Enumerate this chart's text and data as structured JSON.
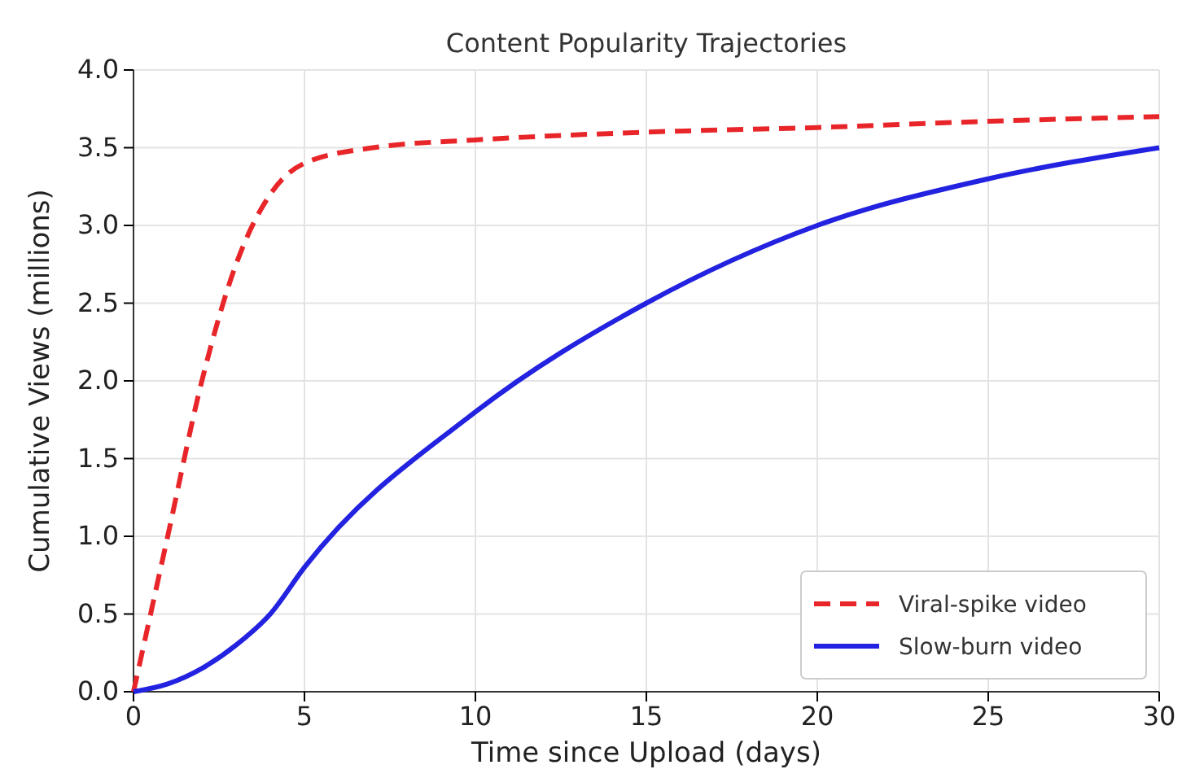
{
  "chart_data": {
    "type": "line",
    "title": "Content Popularity Trajectories",
    "xlabel": "Time since Upload (days)",
    "ylabel": "Cumulative Views (millions)",
    "xlim": [
      0,
      30
    ],
    "xticks": [
      0,
      5,
      10,
      15,
      20,
      25,
      30
    ],
    "ylim": [
      0,
      4
    ],
    "yticks": [
      {
        "value": 0,
        "label": "0.0"
      },
      {
        "value": 0.5,
        "label": "0.5"
      },
      {
        "value": 1,
        "label": "1.0"
      },
      {
        "value": 1.5,
        "label": "1.5"
      },
      {
        "value": 2,
        "label": "2.0"
      },
      {
        "value": 2.5,
        "label": "2.5"
      },
      {
        "value": 3,
        "label": "3.0"
      },
      {
        "value": 3.5,
        "label": "3.5"
      },
      {
        "value": 4,
        "label": "4.0"
      }
    ],
    "grid": true,
    "legend": "bottom right",
    "series": [
      {
        "name": "Viral-spike video",
        "color": "#e8262a",
        "line_style": "dashed",
        "x": [
          0,
          1,
          2,
          3,
          4,
          5,
          7,
          10,
          15,
          20,
          25,
          30
        ],
        "values": [
          0,
          1.0,
          2.0,
          2.75,
          3.2,
          3.4,
          3.5,
          3.55,
          3.6,
          3.63,
          3.67,
          3.7
        ]
      },
      {
        "name": "Slow-burn video",
        "color": "#2222e0",
        "line_style": "solid",
        "x": [
          0,
          1,
          2,
          3,
          4,
          5,
          10,
          15,
          20,
          25,
          30
        ],
        "values": [
          0,
          0.05,
          0.15,
          0.3,
          0.5,
          0.8,
          1.8,
          2.5,
          3.0,
          3.3,
          3.5
        ]
      }
    ]
  }
}
